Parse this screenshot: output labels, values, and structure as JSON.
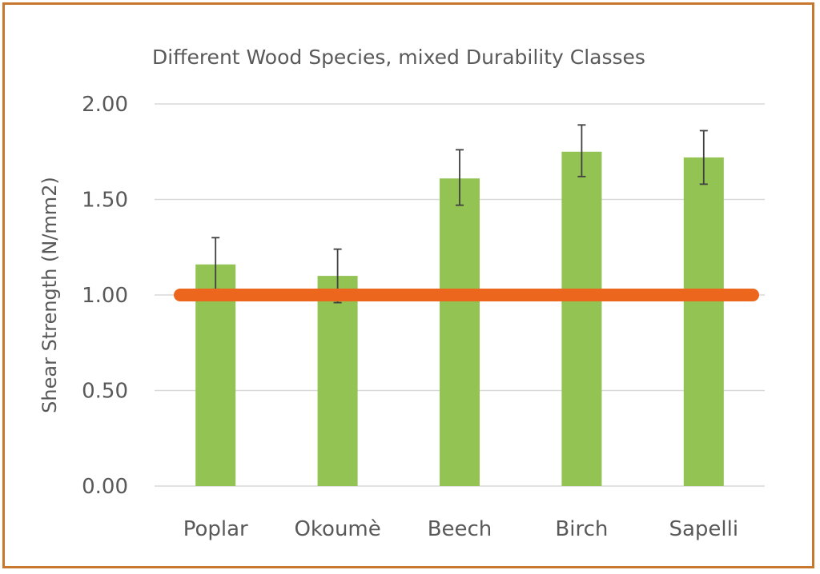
{
  "chart_data": {
    "type": "bar",
    "title": "Different Wood Species, mixed Durability Classes",
    "xlabel": "",
    "ylabel": "Shear Strength (N/mm2)",
    "ylim": [
      0,
      2
    ],
    "yticks": [
      "0.00",
      "0.50",
      "1.00",
      "1.50",
      "2.00"
    ],
    "ytick_values": [
      0,
      0.5,
      1,
      1.5,
      2
    ],
    "grid": true,
    "categories": [
      "Poplar",
      "Okoumè",
      "Beech",
      "Birch",
      "Sapelli"
    ],
    "values": [
      1.16,
      1.1,
      1.61,
      1.75,
      1.72
    ],
    "error_bars": {
      "upper": [
        1.3,
        1.24,
        1.76,
        1.89,
        1.86
      ],
      "lower": [
        1.03,
        0.96,
        1.47,
        1.62,
        1.58
      ]
    },
    "reference_line": {
      "value": 1.0
    },
    "colors": {
      "bar": "#92C353",
      "reference_line": "#EC671D",
      "error_bar": "#404040",
      "grid": "#D9D9D9",
      "border": "#C8772F"
    }
  }
}
